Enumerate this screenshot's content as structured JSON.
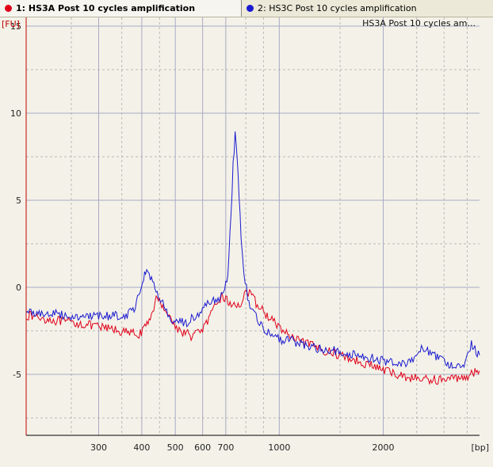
{
  "tabs": [
    {
      "label": "1: HS3A Post 10 cycles amplification",
      "color": "#e0001a",
      "active": true
    },
    {
      "label": "2: HS3C Post 10 cycles amplification",
      "color": "#1a1ad0",
      "active": false
    }
  ],
  "chart_data": {
    "type": "line",
    "title": "HS3A Post 10 cycles am...",
    "xlabel": "[bp]",
    "ylabel": "[FU]",
    "x_scale": "log",
    "xlim": [
      185,
      3800
    ],
    "ylim": [
      -8.5,
      15.5
    ],
    "x_ticks": [
      300,
      400,
      500,
      600,
      700,
      1000,
      2000
    ],
    "y_ticks": [
      -5,
      0,
      5,
      10,
      15
    ],
    "grid": true,
    "series": [
      {
        "color": "#e0001a",
        "x": [
          185,
          210,
          240,
          270,
          300,
          330,
          360,
          390,
          405,
          420,
          440,
          460,
          480,
          500,
          530,
          560,
          590,
          620,
          650,
          680,
          700,
          720,
          740,
          760,
          780,
          800,
          820,
          850,
          900,
          1000,
          1100,
          1300,
          1500,
          1800,
          2100,
          2400,
          2700,
          3000,
          3300,
          3600,
          3800
        ],
        "y": [
          -1.6,
          -1.8,
          -2.0,
          -2.1,
          -2.3,
          -2.4,
          -2.6,
          -2.7,
          -2.5,
          -1.9,
          -0.7,
          -1.0,
          -1.6,
          -2.3,
          -2.6,
          -2.8,
          -2.5,
          -2.0,
          -1.2,
          -0.5,
          -0.7,
          -0.9,
          -1.1,
          -1.0,
          -0.8,
          -0.2,
          -0.4,
          -0.8,
          -1.4,
          -2.3,
          -3.0,
          -3.5,
          -3.9,
          -4.4,
          -4.9,
          -5.2,
          -5.3,
          -5.3,
          -5.2,
          -5.0,
          -4.8
        ]
      },
      {
        "color": "#1a1ad0",
        "x": [
          185,
          210,
          240,
          270,
          300,
          330,
          360,
          380,
          395,
          405,
          410,
          420,
          440,
          460,
          480,
          500,
          540,
          580,
          620,
          660,
          690,
          710,
          720,
          735,
          745,
          755,
          765,
          775,
          790,
          810,
          830,
          850,
          870,
          900,
          960,
          1000,
          1100,
          1300,
          1500,
          1800,
          2100,
          2400,
          2600,
          2800,
          3100,
          3400,
          3600,
          3800
        ],
        "y": [
          -1.4,
          -1.5,
          -1.6,
          -1.7,
          -1.7,
          -1.6,
          -1.6,
          -1.2,
          -0.3,
          0.6,
          1.0,
          0.8,
          -0.2,
          -1.0,
          -1.7,
          -2.1,
          -2.0,
          -1.6,
          -1.0,
          -0.7,
          -0.3,
          0.8,
          3.0,
          7.0,
          8.8,
          7.6,
          5.0,
          3.0,
          1.0,
          -0.6,
          -1.3,
          -1.6,
          -1.9,
          -2.4,
          -2.9,
          -3.0,
          -3.1,
          -3.5,
          -3.7,
          -4.0,
          -4.3,
          -4.3,
          -3.4,
          -3.9,
          -4.4,
          -4.5,
          -3.3,
          -3.9
        ]
      }
    ]
  }
}
